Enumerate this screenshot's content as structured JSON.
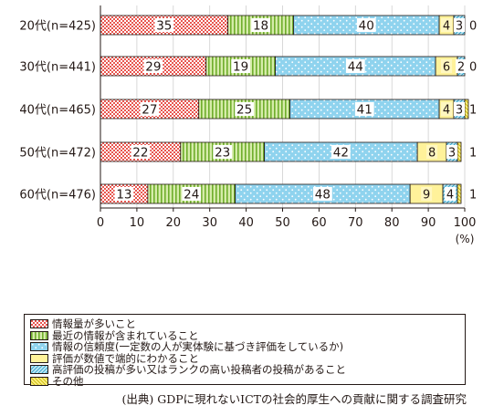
{
  "chart_data": {
    "type": "bar",
    "orientation": "horizontal",
    "stacked": true,
    "categories": [
      "20代(n=425)",
      "30代(n=441)",
      "40代(n=465)",
      "50代(n=472)",
      "60代(n=476)"
    ],
    "series": [
      {
        "name": "情報量が多いこと",
        "values": [
          35,
          29,
          27,
          22,
          13
        ],
        "color": "#f4a6a0",
        "pattern": "dots-red"
      },
      {
        "name": "最近の情報が含まれていること",
        "values": [
          18,
          19,
          25,
          23,
          24
        ],
        "color": "#a9d26b",
        "pattern": "stripes-green"
      },
      {
        "name": "情報の信頼度(一定数の人が実体験に基づき評価をしているか)",
        "values": [
          40,
          44,
          41,
          42,
          48
        ],
        "color": "#8fd3ee",
        "pattern": "dots-blue"
      },
      {
        "name": "評価が数値で端的にわかること",
        "values": [
          4,
          6,
          4,
          8,
          9
        ],
        "color": "#fff29a",
        "pattern": "solid"
      },
      {
        "name": "高評価の投稿が多い又はランクの高い投稿者の投稿があること",
        "values": [
          3,
          2,
          3,
          3,
          4
        ],
        "color": "#a8dff0",
        "pattern": "hatch-blue"
      },
      {
        "name": "その他",
        "values": [
          0,
          0,
          1,
          1,
          1
        ],
        "color": "#f2e24a",
        "pattern": "hatch-yellow"
      }
    ],
    "xlim": [
      0,
      100
    ],
    "xticks": [
      0,
      10,
      20,
      30,
      40,
      50,
      60,
      70,
      80,
      90,
      100
    ],
    "xunit": "(%)",
    "legend_position": "bottom"
  },
  "source": "(出典) GDPに現れないICTの社会的厚生への貢献に関する調査研究"
}
